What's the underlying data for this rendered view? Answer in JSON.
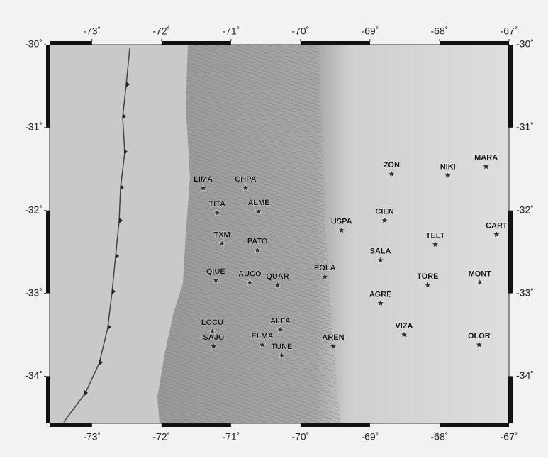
{
  "chart_data": {
    "type": "map",
    "xlim": [
      -73.61,
      -67
    ],
    "ylim": [
      -34.57,
      -30
    ],
    "xticks": [
      {
        "value": -73,
        "label": "-73˚"
      },
      {
        "value": -72,
        "label": "-72˚"
      },
      {
        "value": -71,
        "label": "-71˚"
      },
      {
        "value": -70,
        "label": "-70˚"
      },
      {
        "value": -69,
        "label": "-69˚"
      },
      {
        "value": -68,
        "label": "-68˚"
      },
      {
        "value": -67,
        "label": "-67˚"
      }
    ],
    "yticks": [
      {
        "value": -30,
        "label": "-30˚"
      },
      {
        "value": -31,
        "label": "-31˚"
      },
      {
        "value": -32,
        "label": "-32˚"
      },
      {
        "value": -33,
        "label": "-33˚"
      },
      {
        "value": -34,
        "label": "-34˚"
      }
    ],
    "stations": [
      {
        "name": "ZON",
        "lon": -68.69,
        "lat": -31.56
      },
      {
        "name": "NIKI",
        "lon": -67.88,
        "lat": -31.58
      },
      {
        "name": "MARA",
        "lon": -67.33,
        "lat": -31.47
      },
      {
        "name": "LIMA",
        "lon": -71.4,
        "lat": -31.73
      },
      {
        "name": "CHPA",
        "lon": -70.79,
        "lat": -31.73
      },
      {
        "name": "TITA",
        "lon": -71.2,
        "lat": -32.03
      },
      {
        "name": "ALME",
        "lon": -70.6,
        "lat": -32.01
      },
      {
        "name": "CIEN",
        "lon": -68.79,
        "lat": -32.12
      },
      {
        "name": "USPA",
        "lon": -69.41,
        "lat": -32.24
      },
      {
        "name": "CART",
        "lon": -67.18,
        "lat": -32.29
      },
      {
        "name": "TELT",
        "lon": -68.06,
        "lat": -32.41
      },
      {
        "name": "TXM",
        "lon": -71.13,
        "lat": -32.4
      },
      {
        "name": "PATO",
        "lon": -70.62,
        "lat": -32.48
      },
      {
        "name": "SALA",
        "lon": -68.85,
        "lat": -32.6
      },
      {
        "name": "QIUE",
        "lon": -71.22,
        "lat": -32.84
      },
      {
        "name": "AUCO",
        "lon": -70.73,
        "lat": -32.87
      },
      {
        "name": "QUAR",
        "lon": -70.33,
        "lat": -32.9
      },
      {
        "name": "POLA",
        "lon": -69.65,
        "lat": -32.8
      },
      {
        "name": "TORE",
        "lon": -68.17,
        "lat": -32.9
      },
      {
        "name": "MONT",
        "lon": -67.42,
        "lat": -32.87
      },
      {
        "name": "AGRE",
        "lon": -68.85,
        "lat": -33.12
      },
      {
        "name": "LOCU",
        "lon": -71.27,
        "lat": -33.46
      },
      {
        "name": "ALFA",
        "lon": -70.29,
        "lat": -33.44
      },
      {
        "name": "VIZA",
        "lon": -68.51,
        "lat": -33.5
      },
      {
        "name": "SAJO",
        "lon": -71.25,
        "lat": -33.64
      },
      {
        "name": "ELMA",
        "lon": -70.55,
        "lat": -33.62
      },
      {
        "name": "AREN",
        "lon": -69.53,
        "lat": -33.64
      },
      {
        "name": "OLOR",
        "lon": -67.43,
        "lat": -33.62
      },
      {
        "name": "TUNE",
        "lon": -70.27,
        "lat": -33.75
      }
    ]
  }
}
